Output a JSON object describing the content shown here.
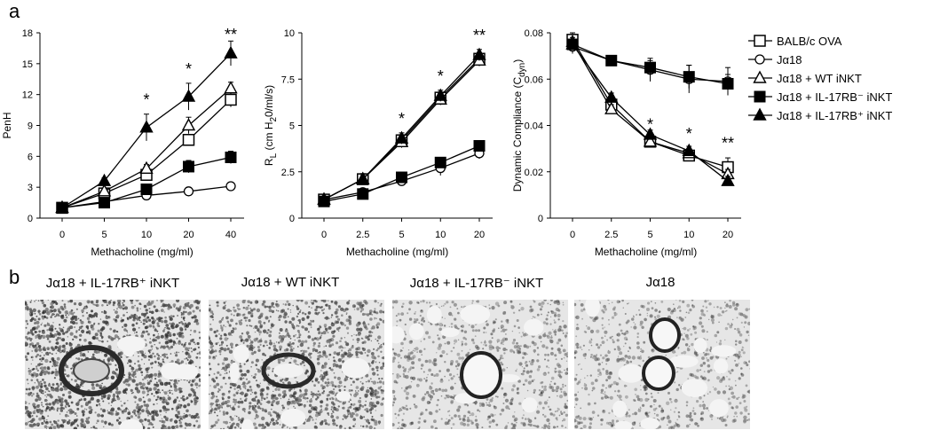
{
  "panel_labels": {
    "a": "a",
    "b": "b"
  },
  "chart_data": [
    {
      "type": "line",
      "ylabel": "PenH",
      "xlabel": "Methacholine (mg/ml)",
      "categories": [
        "0",
        "5",
        "10",
        "20",
        "40"
      ],
      "ylim": [
        0,
        18
      ],
      "yticks": [
        "0",
        "3",
        "6",
        "9",
        "12",
        "15",
        "18"
      ],
      "significance": [
        "",
        "",
        "*",
        "*",
        "**"
      ],
      "series": [
        {
          "name": "BALB/c OVA",
          "marker": "square-open",
          "values": [
            1.0,
            2.4,
            4.2,
            7.6,
            11.5
          ],
          "errors": [
            0.2,
            0.3,
            0.4,
            0.5,
            0.7
          ]
        },
        {
          "name": "Jα18",
          "marker": "circle-open",
          "values": [
            1.0,
            1.6,
            2.2,
            2.6,
            3.1
          ],
          "errors": [
            0.1,
            0.1,
            0.1,
            0.1,
            0.1
          ]
        },
        {
          "name": "Jα18 + WT iNKT",
          "marker": "triangle-open",
          "values": [
            1.0,
            2.6,
            4.8,
            9.0,
            12.6
          ],
          "errors": [
            0.2,
            0.3,
            0.4,
            0.8,
            0.6
          ]
        },
        {
          "name": "Jα18 + IL-17RB⁻ iNKT",
          "marker": "square-filled",
          "values": [
            1.0,
            1.5,
            2.8,
            5.0,
            5.9
          ],
          "errors": [
            0.1,
            0.2,
            0.3,
            0.6,
            0.6
          ]
        },
        {
          "name": "Jα18 + IL-17RB⁺ iNKT",
          "marker": "triangle-filled",
          "values": [
            1.0,
            3.6,
            8.8,
            11.8,
            16.0
          ],
          "errors": [
            0.2,
            0.3,
            1.3,
            1.3,
            1.2
          ]
        }
      ]
    },
    {
      "type": "line",
      "ylabel_main": "R",
      "ylabel_sub": "L",
      "ylabel_rest": "(cm H",
      "ylabel_sub2": "2",
      "ylabel_tail": "0/ml/s)",
      "xlabel": "Methacholine (mg/ml)",
      "categories": [
        "0",
        "2.5",
        "5",
        "10",
        "20"
      ],
      "ylim": [
        0,
        10
      ],
      "yticks": [
        "0",
        "2.5",
        "5",
        "7.5",
        "10"
      ],
      "significance": [
        "",
        "",
        "*",
        "*",
        "**"
      ],
      "series": [
        {
          "name": "BALB/c OVA",
          "marker": "square-open",
          "values": [
            1.0,
            2.1,
            4.2,
            6.5,
            8.6
          ],
          "errors": [
            0.1,
            0.2,
            0.3,
            0.3,
            0.3
          ]
        },
        {
          "name": "Jα18",
          "marker": "circle-open",
          "values": [
            1.0,
            1.4,
            2.0,
            2.7,
            3.5
          ],
          "errors": [
            0.1,
            0.1,
            0.1,
            0.4,
            0.3
          ]
        },
        {
          "name": "Jα18 + WT iNKT",
          "marker": "triangle-open",
          "values": [
            1.0,
            2.1,
            4.1,
            6.4,
            8.5
          ],
          "errors": [
            0.1,
            0.2,
            0.3,
            0.3,
            0.3
          ]
        },
        {
          "name": "Jα18 + IL-17RB⁻ iNKT",
          "marker": "square-filled",
          "values": [
            0.9,
            1.3,
            2.2,
            3.0,
            3.9
          ],
          "errors": [
            0.1,
            0.1,
            0.1,
            0.2,
            0.2
          ]
        },
        {
          "name": "Jα18 + IL-17RB⁺ iNKT",
          "marker": "triangle-filled",
          "values": [
            1.0,
            2.1,
            4.3,
            6.6,
            8.8
          ],
          "errors": [
            0.1,
            0.3,
            0.3,
            0.3,
            0.3
          ]
        }
      ]
    },
    {
      "type": "line",
      "ylabel_main": "Dynamic Compliance (C",
      "ylabel_sub": "dyn",
      "ylabel_tail": ")",
      "xlabel": "Methacholine (mg/ml)",
      "categories": [
        "0",
        "2.5",
        "5",
        "10",
        "20"
      ],
      "ylim": [
        0,
        0.08
      ],
      "yticks": [
        "0",
        "0.02",
        "0.04",
        "0.06",
        "0.08"
      ],
      "significance": [
        "",
        "",
        "*",
        "*",
        "**"
      ],
      "series": [
        {
          "name": "BALB/c OVA",
          "marker": "square-open",
          "values": [
            0.077,
            0.049,
            0.033,
            0.027,
            0.022
          ],
          "errors": [
            0.003,
            0.003,
            0.002,
            0.002,
            0.004
          ]
        },
        {
          "name": "Jα18",
          "marker": "circle-open",
          "values": [
            0.074,
            0.068,
            0.064,
            0.06,
            0.059
          ],
          "errors": [
            0.003,
            0.002,
            0.005,
            0.006,
            0.006
          ]
        },
        {
          "name": "Jα18 + WT iNKT",
          "marker": "triangle-open",
          "values": [
            0.076,
            0.047,
            0.033,
            0.028,
            0.019
          ],
          "errors": [
            0.002,
            0.002,
            0.002,
            0.002,
            0.002
          ]
        },
        {
          "name": "Jα18 + IL-17RB⁻ iNKT",
          "marker": "square-filled",
          "values": [
            0.075,
            0.068,
            0.065,
            0.061,
            0.058
          ],
          "errors": [
            0.002,
            0.002,
            0.003,
            0.005,
            0.004
          ]
        },
        {
          "name": "Jα18 + IL-17RB⁺ iNKT",
          "marker": "triangle-filled",
          "values": [
            0.075,
            0.052,
            0.036,
            0.029,
            0.016
          ],
          "errors": [
            0.002,
            0.002,
            0.002,
            0.002,
            0.002
          ]
        }
      ]
    }
  ],
  "legend": [
    "BALB/c OVA",
    "Jα18",
    "Jα18 + WT iNKT",
    "Jα18 + IL-17RB⁻ iNKT",
    "Jα18 + IL-17RB⁺ iNKT"
  ],
  "micrographs": [
    {
      "title": "Jα18 + IL-17RB⁺ iNKT",
      "density": 0.92
    },
    {
      "title": "Jα18 + WT iNKT",
      "density": 0.75
    },
    {
      "title": "Jα18 + IL-17RB⁻ iNKT",
      "density": 0.35
    },
    {
      "title": "Jα18",
      "density": 0.3
    }
  ]
}
